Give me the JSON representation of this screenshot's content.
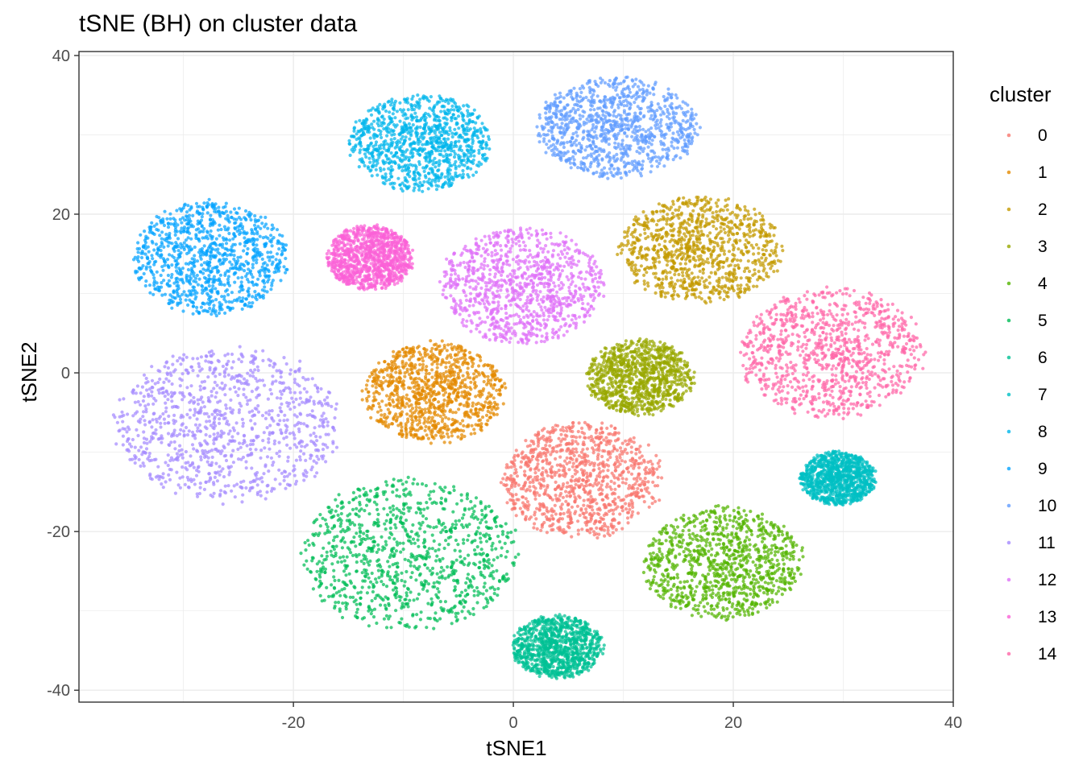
{
  "chart_data": {
    "type": "scatter",
    "title": "tSNE (BH) on cluster data",
    "xlabel": "tSNE1",
    "ylabel": "tSNE2",
    "xlim": [
      -39.5,
      40
    ],
    "ylim": [
      -41.5,
      40.5
    ],
    "x_ticks": [
      -20,
      0,
      20,
      40
    ],
    "x_tick_labels": [
      "-20",
      "0",
      "20",
      "40"
    ],
    "y_ticks": [
      -40,
      -20,
      0,
      20,
      40
    ],
    "y_tick_labels": [
      "-40",
      "-20",
      "0",
      "20",
      "40"
    ],
    "grid": true,
    "legend": {
      "title": "cluster",
      "position": "right"
    },
    "series": [
      {
        "name": "0",
        "color": "#F8766D",
        "center": [
          6.2,
          -13.5
        ],
        "spread": [
          7.3,
          7.2
        ],
        "n": 1000
      },
      {
        "name": "1",
        "color": "#E38900",
        "center": [
          -7.2,
          -2.5
        ],
        "spread": [
          6.3,
          6.3
        ],
        "n": 1000
      },
      {
        "name": "2",
        "color": "#C49A00",
        "center": [
          17.0,
          15.5
        ],
        "spread": [
          7.2,
          6.7
        ],
        "n": 1000
      },
      {
        "name": "3",
        "color": "#99A800",
        "center": [
          11.5,
          -0.5
        ],
        "spread": [
          4.8,
          4.7
        ],
        "n": 1000
      },
      {
        "name": "4",
        "color": "#53B400",
        "center": [
          19.0,
          -24.0
        ],
        "spread": [
          7.2,
          6.9
        ],
        "n": 1000
      },
      {
        "name": "5",
        "color": "#00BC56",
        "center": [
          -9.5,
          -23.0
        ],
        "spread": [
          9.8,
          9.4
        ],
        "n": 1000
      },
      {
        "name": "6",
        "color": "#00C094",
        "center": [
          4.0,
          -34.5
        ],
        "spread": [
          4.1,
          3.9
        ],
        "n": 1000
      },
      {
        "name": "7",
        "color": "#00BFC4",
        "center": [
          29.5,
          -13.3
        ],
        "spread": [
          3.4,
          3.3
        ],
        "n": 1000
      },
      {
        "name": "8",
        "color": "#00B6EB",
        "center": [
          -8.5,
          29.0
        ],
        "spread": [
          6.4,
          6.0
        ],
        "n": 1000
      },
      {
        "name": "9",
        "color": "#06A4FF",
        "center": [
          -27.5,
          14.5
        ],
        "spread": [
          6.9,
          7.0
        ],
        "n": 1000
      },
      {
        "name": "10",
        "color": "#619CFF",
        "center": [
          9.5,
          31.0
        ],
        "spread": [
          7.3,
          6.2
        ],
        "n": 1000
      },
      {
        "name": "11",
        "color": "#A58AFF",
        "center": [
          -26.0,
          -6.5
        ],
        "spread": [
          10.2,
          9.6
        ],
        "n": 1000
      },
      {
        "name": "12",
        "color": "#DF70F8",
        "center": [
          0.8,
          11.0
        ],
        "spread": [
          7.3,
          7.2
        ],
        "n": 1000
      },
      {
        "name": "13",
        "color": "#FB61D7",
        "center": [
          -13.0,
          14.5
        ],
        "spread": [
          3.9,
          4.0
        ],
        "n": 1000
      },
      {
        "name": "14",
        "color": "#FF66A8",
        "center": [
          29.0,
          2.5
        ],
        "spread": [
          8.3,
          8.0
        ],
        "n": 1000
      }
    ]
  }
}
